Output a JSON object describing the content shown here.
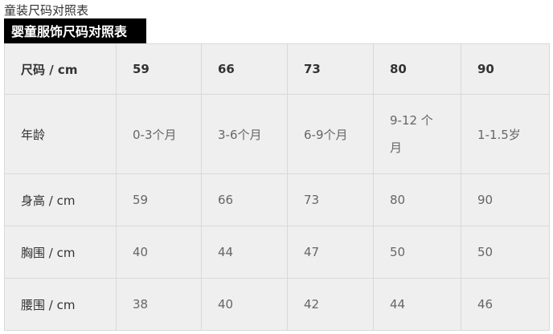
{
  "title": "童装尺码对照表",
  "banner": "婴童服饰尺码对照表",
  "table": {
    "header": [
      "尺码 / cm",
      "59",
      "66",
      "73",
      "80",
      "90"
    ],
    "rows": [
      [
        "年龄",
        "0-3个月",
        "3-6个月",
        "6-9个月",
        "9-12 个月",
        "1-1.5岁"
      ],
      [
        "身高 / cm",
        "59",
        "66",
        "73",
        "80",
        "90"
      ],
      [
        "胸围 / cm",
        "40",
        "44",
        "47",
        "50",
        "50"
      ],
      [
        "腰围 / cm",
        "38",
        "40",
        "42",
        "44",
        "46"
      ]
    ]
  }
}
